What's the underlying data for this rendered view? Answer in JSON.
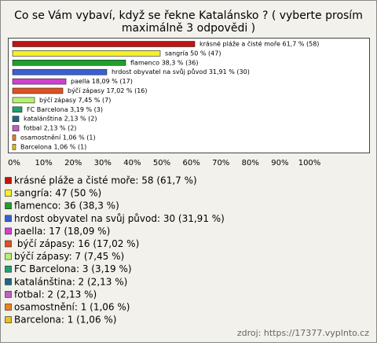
{
  "chart_data": {
    "type": "bar",
    "orientation": "horizontal",
    "title": "Co se Vám vybaví, když se řekne Katalánsko ? ( vyberte prosím maximálně 3 odpovědi )",
    "values": [
      61.7,
      50,
      38.3,
      31.91,
      18.09,
      17.02,
      7.45,
      3.19,
      2.13,
      2.13,
      1.06,
      1.06
    ],
    "value_labels": [
      "krásné pláže a čisté moře 61,7 % (58)",
      "sangría 50 % (47)",
      "flamenco 38,3 % (36)",
      "hrdost obyvatel na svůj původ 31,91 % (30)",
      "paella 18,09 % (17)",
      "býčí zápasy 17,02 % (16)",
      "býčí zápasy 7,45 % (7)",
      "FC Barcelona 3,19 % (3)",
      "katalánština 2,13 % (2)",
      "fotbal 2,13 % (2)",
      "osamostnění 1,06 % (1)",
      "Barcelona 1,06 % (1)"
    ],
    "legend": [
      "krásné pláže a čisté moře: 58 (61,7 %)",
      "sangría: 47 (50 %)",
      "flamenco: 36 (38,3 %)",
      "hrdost obyvatel na svůj původ: 30 (31,91 %)",
      "paella: 17 (18,09 %)",
      " býčí zápasy: 16 (17,02 %)",
      "býčí zápasy: 7 (7,45 %)",
      "FC Barcelona: 3 (3,19 %)",
      "katalánština: 2 (2,13 %)",
      "fotbal: 2 (2,13 %)",
      "osamostnění: 1 (1,06 %)",
      "Barcelona: 1 (1,06 %)"
    ],
    "colors": [
      "#c0150f",
      "#f5f02a",
      "#1ea02a",
      "#3a5fd0",
      "#d040d0",
      "#e05020",
      "#b8f070",
      "#20a070",
      "#206880",
      "#c060c0",
      "#f08020",
      "#e8c020"
    ],
    "xlim": [
      0,
      100
    ],
    "xticks": [
      {
        "value": 0,
        "label": "0%"
      },
      {
        "value": 10,
        "label": "10%"
      },
      {
        "value": 20,
        "label": "20%"
      },
      {
        "value": 30,
        "label": "30%"
      },
      {
        "value": 40,
        "label": "40%"
      },
      {
        "value": 50,
        "label": "50%"
      },
      {
        "value": 60,
        "label": "60%"
      },
      {
        "value": 70,
        "label": "70%"
      },
      {
        "value": 80,
        "label": "80%"
      },
      {
        "value": 90,
        "label": "90%"
      },
      {
        "value": 100,
        "label": "100%"
      }
    ],
    "source": "zdroj: https://17377.vyplnto.cz"
  }
}
